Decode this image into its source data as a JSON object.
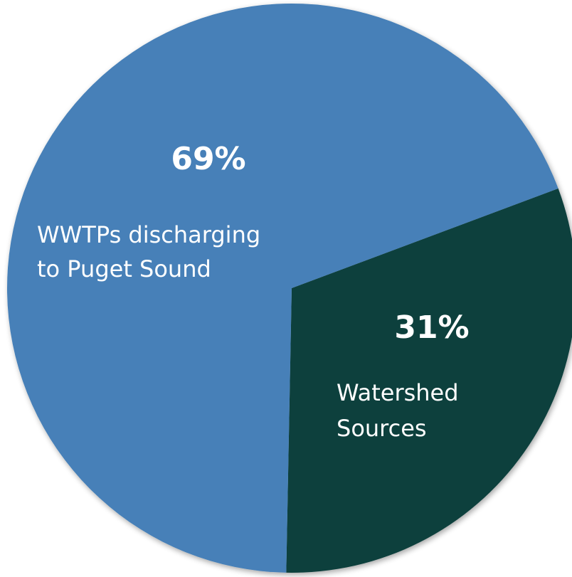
{
  "chart_data": {
    "type": "pie",
    "title": "",
    "slices": [
      {
        "label_lines": [
          "WWTPs discharging",
          "to Puget Sound"
        ],
        "value": 69,
        "value_label": "69%",
        "color": "#4680B8"
      },
      {
        "label_lines": [
          "Watershed",
          "Sources"
        ],
        "value": 31,
        "value_label": "31%",
        "color": "#11403E"
      }
    ],
    "legend": "none",
    "data_labels": "inside"
  }
}
